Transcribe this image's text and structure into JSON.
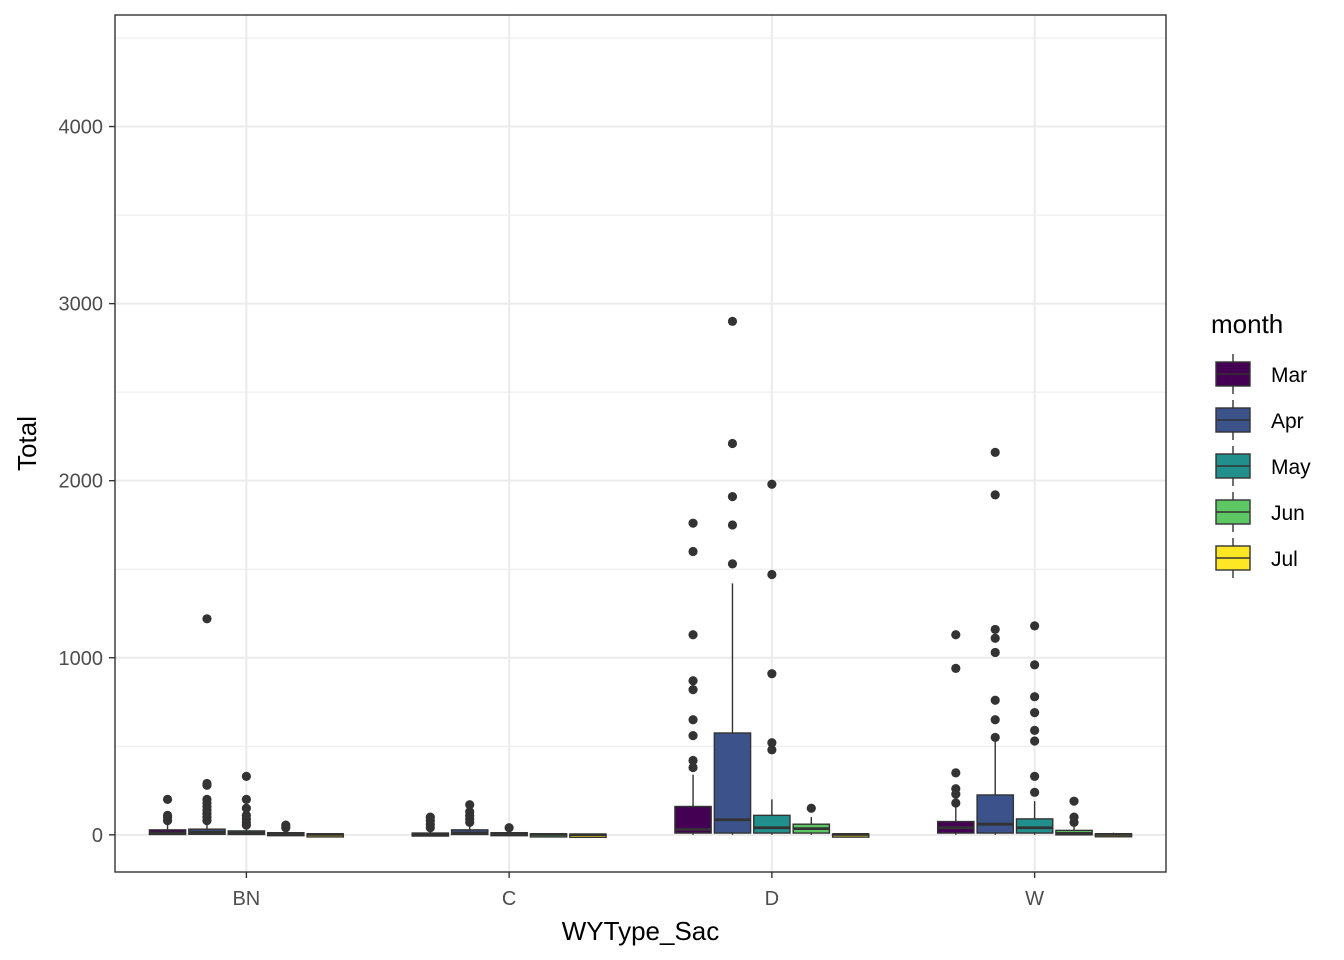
{
  "chart_data": {
    "type": "boxplot",
    "xlabel": "WYType_Sac",
    "ylabel": "Total",
    "categories": [
      "BN",
      "C",
      "D",
      "W"
    ],
    "ylim": [
      -210,
      4630
    ],
    "yticks": [
      0,
      1000,
      2000,
      3000,
      4000
    ],
    "grid": true,
    "legend_title": "month",
    "legend_position": "right",
    "series": [
      {
        "name": "Mar",
        "color": "#440154",
        "boxes": [
          {
            "category": "BN",
            "q1": 2,
            "median": 10,
            "q3": 28,
            "whisker_low": 0,
            "whisker_high": 60,
            "outliers": [
              80,
              100,
              110,
              200
            ]
          },
          {
            "category": "C",
            "q1": 0,
            "median": 3,
            "q3": 10,
            "whisker_low": 0,
            "whisker_high": 25,
            "outliers": [
              40,
              60,
              80,
              100
            ]
          },
          {
            "category": "D",
            "q1": 10,
            "median": 30,
            "q3": 160,
            "whisker_low": 0,
            "whisker_high": 340,
            "outliers": [
              380,
              420,
              560,
              650,
              820,
              870,
              1130,
              1600,
              1760
            ]
          },
          {
            "category": "W",
            "q1": 10,
            "median": 40,
            "q3": 75,
            "whisker_low": 0,
            "whisker_high": 160,
            "outliers": [
              180,
              230,
              260,
              350,
              940,
              1130
            ]
          }
        ]
      },
      {
        "name": "Apr",
        "color": "#3b528b",
        "boxes": [
          {
            "category": "BN",
            "q1": 3,
            "median": 15,
            "q3": 32,
            "whisker_low": 0,
            "whisker_high": 70,
            "outliers": [
              80,
              100,
              120,
              140,
              160,
              180,
              200,
              280,
              290,
              1220
            ]
          },
          {
            "category": "C",
            "q1": 2,
            "median": 10,
            "q3": 28,
            "whisker_low": 0,
            "whisker_high": 50,
            "outliers": [
              70,
              90,
              110,
              130,
              170
            ]
          },
          {
            "category": "D",
            "q1": 10,
            "median": 85,
            "q3": 575,
            "whisker_low": 0,
            "whisker_high": 1420,
            "outliers": [
              1530,
              1750,
              1910,
              2210,
              2900
            ]
          },
          {
            "category": "W",
            "q1": 10,
            "median": 60,
            "q3": 225,
            "whisker_low": 0,
            "whisker_high": 530,
            "outliers": [
              550,
              650,
              760,
              1030,
              1110,
              1160,
              1920,
              2160
            ]
          }
        ]
      },
      {
        "name": "May",
        "color": "#21908c",
        "boxes": [
          {
            "category": "BN",
            "q1": 2,
            "median": 10,
            "q3": 22,
            "whisker_low": 0,
            "whisker_high": 45,
            "outliers": [
              55,
              70,
              90,
              110,
              150,
              200,
              330
            ]
          },
          {
            "category": "C",
            "q1": 0,
            "median": 5,
            "q3": 12,
            "whisker_low": 0,
            "whisker_high": 25,
            "outliers": [
              40
            ]
          },
          {
            "category": "D",
            "q1": 10,
            "median": 40,
            "q3": 110,
            "whisker_low": 0,
            "whisker_high": 200,
            "outliers": [
              480,
              520,
              910,
              1470,
              1980
            ]
          },
          {
            "category": "W",
            "q1": 10,
            "median": 40,
            "q3": 90,
            "whisker_low": 0,
            "whisker_high": 190,
            "outliers": [
              240,
              330,
              530,
              590,
              690,
              780,
              960,
              1180
            ]
          }
        ]
      },
      {
        "name": "Jun",
        "color": "#5dc863",
        "boxes": [
          {
            "category": "BN",
            "q1": 0,
            "median": 5,
            "q3": 12,
            "whisker_low": 0,
            "whisker_high": 25,
            "outliers": [
              40,
              55
            ]
          },
          {
            "category": "C",
            "q1": 0,
            "median": 2,
            "q3": 5,
            "whisker_low": 0,
            "whisker_high": 10,
            "outliers": []
          },
          {
            "category": "D",
            "q1": 10,
            "median": 35,
            "q3": 60,
            "whisker_low": 0,
            "whisker_high": 100,
            "outliers": [
              150
            ]
          },
          {
            "category": "W",
            "q1": 0,
            "median": 8,
            "q3": 25,
            "whisker_low": 0,
            "whisker_high": 45,
            "outliers": [
              70,
              100,
              190
            ]
          }
        ]
      },
      {
        "name": "Jul",
        "color": "#fde725",
        "boxes": [
          {
            "category": "BN",
            "q1": 0,
            "median": 2,
            "q3": 5,
            "whisker_low": 0,
            "whisker_high": 10,
            "outliers": []
          },
          {
            "category": "C",
            "q1": 0,
            "median": 1,
            "q3": 3,
            "whisker_low": 0,
            "whisker_high": 6,
            "outliers": []
          },
          {
            "category": "D",
            "q1": 0,
            "median": 2,
            "q3": 4,
            "whisker_low": 0,
            "whisker_high": 8,
            "outliers": []
          },
          {
            "category": "W",
            "q1": 0,
            "median": 2,
            "q3": 6,
            "whisker_low": 0,
            "whisker_high": 12,
            "outliers": []
          }
        ]
      }
    ]
  }
}
